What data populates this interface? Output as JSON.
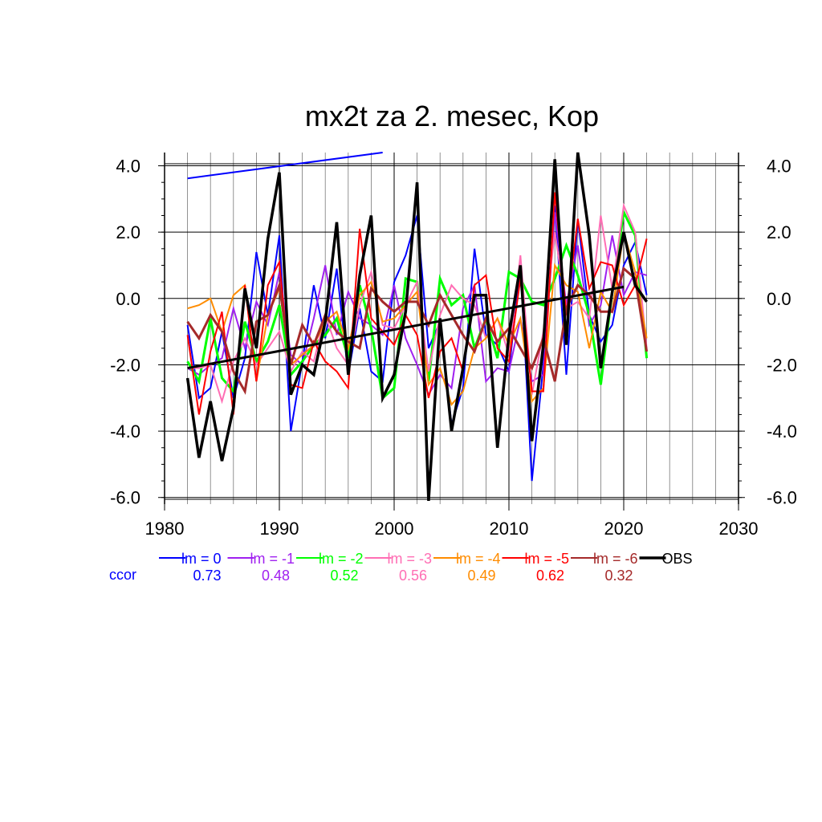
{
  "chart_data": {
    "type": "line",
    "title": "mx2t za 2. mesec, Kop",
    "xlim": [
      1980,
      2030
    ],
    "ylim": [
      -6.2,
      4.4
    ],
    "x_ticks": [
      "1980",
      "1990",
      "2000",
      "2010",
      "2020",
      "2030"
    ],
    "y_ticks": [
      "4.0",
      "2.0",
      "0.0",
      "-2.0",
      "-4.0",
      "-6.0"
    ],
    "grid": true,
    "legend_position": "bottom",
    "ccor_label": "ccor",
    "x": [
      1982,
      1983,
      1984,
      1985,
      1986,
      1987,
      1988,
      1989,
      1990,
      1991,
      1992,
      1993,
      1994,
      1995,
      1996,
      1997,
      1998,
      1999,
      2000,
      2001,
      2002,
      2003,
      2004,
      2005,
      2006,
      2007,
      2008,
      2009,
      2010,
      2011,
      2012,
      2013,
      2014,
      2015,
      2016,
      2017,
      2018,
      2019,
      2020,
      2021,
      2022
    ],
    "series": [
      {
        "name": "lm = 0",
        "color": "#0000ff",
        "width": 2,
        "ccor": "0.73",
        "values": [
          -0.8,
          -3.0,
          -2.7,
          -1.0,
          -3.0,
          -1.8,
          1.4,
          -0.5,
          1.9,
          -4.0,
          -1.9,
          0.4,
          -1.2,
          0.9,
          -2.3,
          -0.3,
          -2.2,
          -2.5,
          0.5,
          1.3,
          2.5,
          -1.5,
          -0.7,
          -3.8,
          -2.7,
          1.5,
          -1.1,
          -1.4,
          -2.2,
          1.0,
          -5.5,
          -2.0,
          2.8,
          -2.3,
          2.4,
          -0.5,
          -1.3,
          -0.8,
          1.0,
          1.7,
          0.1
        ],
        "trend": [
          3.62,
          4.4
        ],
        "trend_x": [
          1982,
          1999
        ]
      },
      {
        "name": "lm = -1",
        "color": "#a020f0",
        "width": 2,
        "ccor": "0.48",
        "values": [
          -2.1,
          -2.3,
          -2.0,
          -1.8,
          -0.3,
          -1.5,
          -0.1,
          -0.8,
          0.8,
          -1.7,
          -2.0,
          -0.6,
          1.0,
          -1.1,
          0.2,
          -0.6,
          -0.8,
          -1.1,
          0.4,
          -1.2,
          -2.0,
          -2.9,
          -2.3,
          -2.7,
          -0.3,
          0.4,
          -2.5,
          -2.1,
          -2.2,
          -0.6,
          -2.5,
          -2.3,
          2.6,
          -0.2,
          1.6,
          -0.8,
          -0.2,
          1.9,
          0.1,
          0.8,
          0.7
        ]
      },
      {
        "name": "lm = -2",
        "color": "#00ff00",
        "width": 3,
        "ccor": "0.52",
        "values": [
          -1.9,
          -2.5,
          -0.6,
          -2.4,
          -2.8,
          -0.7,
          -1.9,
          -1.3,
          -0.2,
          -2.3,
          -1.9,
          -1.4,
          -1.1,
          -0.6,
          -1.8,
          0.4,
          -0.9,
          -3.0,
          -2.7,
          0.6,
          0.5,
          -2.5,
          0.6,
          -0.2,
          0.1,
          -1.5,
          -0.6,
          -1.8,
          0.8,
          0.6,
          -0.1,
          -0.2,
          0.6,
          1.6,
          0.7,
          -0.5,
          -2.6,
          0.2,
          2.6,
          1.9,
          -1.8
        ]
      },
      {
        "name": "lm = -3",
        "color": "#ff6eb4",
        "width": 2,
        "ccor": "0.56",
        "values": [
          -2.1,
          -2.1,
          -2.0,
          -3.1,
          -1.9,
          -1.2,
          -2.0,
          -1.5,
          -1.0,
          -2.2,
          -1.6,
          -1.9,
          -0.5,
          -1.5,
          -2.0,
          -0.2,
          0.8,
          -0.8,
          -0.9,
          -0.2,
          0.5,
          -2.2,
          -0.5,
          0.4,
          0.0,
          -0.2,
          -1.2,
          -0.6,
          -1.7,
          1.3,
          -2.9,
          -1.0,
          2.0,
          -0.3,
          -0.1,
          -0.6,
          2.5,
          0.3,
          2.8,
          2.0,
          -1.5
        ]
      },
      {
        "name": "lm = -4",
        "color": "#ff8c00",
        "width": 2,
        "ccor": "0.49",
        "values": [
          -0.3,
          -0.2,
          0.0,
          -1.0,
          0.1,
          0.4,
          -2.5,
          -0.5,
          0.3,
          -2.0,
          -1.7,
          -1.4,
          -0.7,
          -0.4,
          -1.5,
          0.1,
          0.5,
          -0.7,
          -0.6,
          -0.2,
          0.2,
          -2.6,
          -2.1,
          -3.2,
          -2.8,
          -1.5,
          -1.2,
          -0.6,
          -1.4,
          -0.6,
          -3.1,
          -2.7,
          1.0,
          0.4,
          0.2,
          -1.5,
          0.2,
          -0.4,
          2.0,
          0.8,
          -1.2
        ]
      },
      {
        "name": "lm = -5",
        "color": "#ff0000",
        "width": 2,
        "ccor": "0.62",
        "values": [
          -1.1,
          -3.5,
          -1.6,
          -0.4,
          -3.5,
          0.4,
          -2.5,
          0.4,
          1.1,
          -2.6,
          -2.7,
          -1.3,
          -1.9,
          -2.2,
          -2.7,
          2.1,
          -0.6,
          -1.0,
          -1.4,
          -0.5,
          -1.1,
          -3.0,
          -1.6,
          -1.2,
          -2.2,
          0.4,
          0.7,
          -1.5,
          -1.9,
          0.6,
          -2.8,
          -2.8,
          3.2,
          -0.5,
          2.4,
          0.3,
          1.1,
          1.0,
          -0.2,
          0.4,
          1.8
        ]
      },
      {
        "name": "lm = -6",
        "color": "#a52a2a",
        "width": 3,
        "ccor": "0.32",
        "values": [
          -0.7,
          -1.2,
          -0.5,
          -1.0,
          -2.2,
          -2.8,
          -0.7,
          -0.5,
          0.4,
          -2.0,
          -0.8,
          -1.4,
          -0.5,
          -1.0,
          -1.3,
          -1.5,
          0.3,
          -0.1,
          -0.4,
          -0.1,
          -0.1,
          -0.8,
          0.1,
          -0.5,
          -1.1,
          -1.6,
          -0.6,
          -1.3,
          -0.9,
          -1.5,
          -2.1,
          -1.2,
          -2.5,
          -0.3,
          0.4,
          0.1,
          -0.4,
          -0.4,
          0.9,
          0.6,
          -1.6
        ]
      },
      {
        "name": "OBS",
        "color": "#000000",
        "width": 3.5,
        "ccor": "",
        "values": [
          -2.4,
          -4.8,
          -3.1,
          -4.9,
          -3.3,
          0.3,
          -1.5,
          1.8,
          3.8,
          -2.9,
          -2.0,
          -2.3,
          -0.7,
          2.3,
          -2.3,
          0.7,
          2.5,
          -3.0,
          -2.3,
          -0.4,
          3.5,
          -6.1,
          -0.6,
          -4.0,
          -2.1,
          0.1,
          0.1,
          -4.5,
          -1.1,
          1.0,
          -4.3,
          -1.4,
          4.2,
          -1.4,
          4.4,
          1.9,
          -2.1,
          0.2,
          2.0,
          0.4,
          -0.1
        ],
        "trend": [
          -2.1,
          0.35
        ],
        "trend_x": [
          1982,
          2020
        ]
      }
    ]
  }
}
